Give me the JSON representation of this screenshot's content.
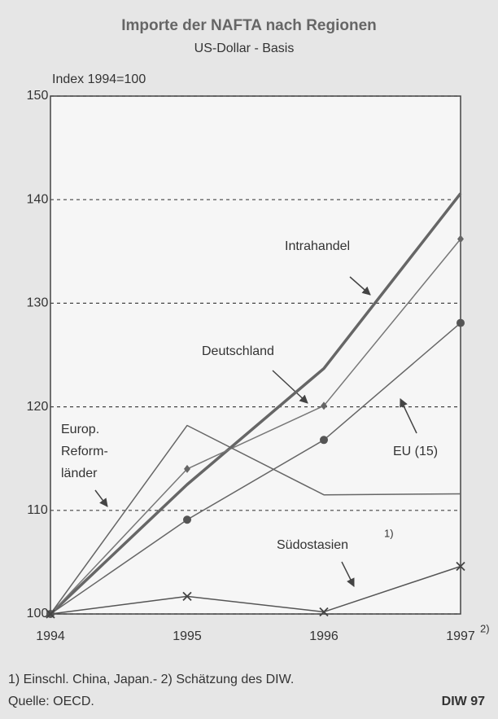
{
  "chart_data": {
    "type": "line",
    "title": "Importe der NAFTA nach Regionen",
    "subtitle": "US-Dollar - Basis",
    "y_label": "Index 1994=100",
    "categories": [
      "1994",
      "1995",
      "1996",
      "1997"
    ],
    "series": [
      {
        "name": "Intrahandel",
        "color": "#666666",
        "linewidth": 3.5,
        "marker": null,
        "values": [
          100,
          112.5,
          123.7,
          140.6
        ]
      },
      {
        "name": "Deutschland",
        "color": "#777777",
        "linewidth": 1.5,
        "marker": "diamond",
        "values": [
          100,
          114,
          120.1,
          136.2
        ]
      },
      {
        "name": "EU (15)",
        "color": "#666666",
        "linewidth": 1.5,
        "marker": "circle",
        "values": [
          100,
          109.1,
          116.8,
          128.1
        ]
      },
      {
        "name": "Europ. Reformländer",
        "color": "#666666",
        "linewidth": 1.5,
        "marker": null,
        "values": [
          100,
          118.2,
          111.5,
          111.6
        ]
      },
      {
        "name": "Südostasien",
        "color": "#555555",
        "linewidth": 1.5,
        "marker": "x",
        "values": [
          100,
          101.7,
          100.2,
          104.6
        ]
      }
    ],
    "annotations": [
      "Intrahandel",
      "Deutschland",
      "EU (15)",
      "Europ.",
      "Reform-",
      "länder",
      "Südostasien",
      "1)",
      "2)"
    ],
    "ylim": [
      100,
      150
    ],
    "yticks": [
      100,
      110,
      120,
      130,
      140,
      150
    ],
    "grid": true,
    "footnote": "1) Einschl. China, Japan.- 2) Schätzung des DIW.",
    "source": "Quelle: OECD.",
    "credit": "DIW 97"
  }
}
